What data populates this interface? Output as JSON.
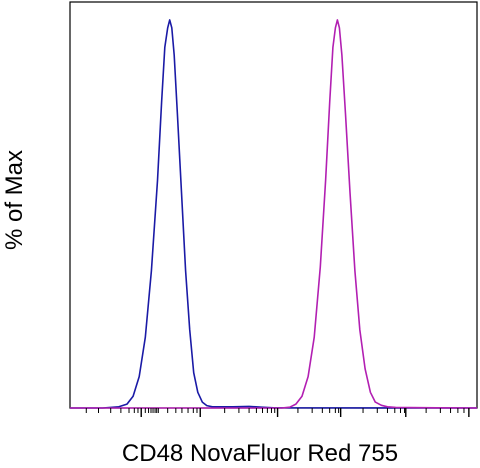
{
  "chart_data": {
    "type": "line",
    "title": "",
    "xlabel": "CD48 NovaFluor Red 755",
    "ylabel": "% of Max",
    "xlim": [
      0,
      100
    ],
    "ylim": [
      0,
      100
    ],
    "x_scale": "biexponential",
    "grid": false,
    "legend": "none",
    "series": [
      {
        "color": "#1a1aa6",
        "points": [
          [
            0,
            0
          ],
          [
            8,
            0
          ],
          [
            12,
            0.3
          ],
          [
            14,
            1
          ],
          [
            15.5,
            3
          ],
          [
            17,
            8
          ],
          [
            18.5,
            18
          ],
          [
            20,
            35
          ],
          [
            21.5,
            58
          ],
          [
            22.5,
            78
          ],
          [
            23.3,
            92
          ],
          [
            24,
            97
          ],
          [
            24.5,
            99
          ],
          [
            25,
            97
          ],
          [
            25.6,
            90
          ],
          [
            26.4,
            75
          ],
          [
            27.4,
            55
          ],
          [
            28.4,
            35
          ],
          [
            29.4,
            20
          ],
          [
            30.4,
            9
          ],
          [
            31.4,
            4
          ],
          [
            32.5,
            1.5
          ],
          [
            33.6,
            0.6
          ],
          [
            35,
            0.3
          ],
          [
            40,
            0.3
          ],
          [
            44,
            0.4
          ],
          [
            47,
            0.2
          ],
          [
            50,
            0.05
          ],
          [
            100,
            0
          ]
        ]
      },
      {
        "color": "#b21fb2",
        "points": [
          [
            0,
            0
          ],
          [
            52,
            0
          ],
          [
            54,
            0.2
          ],
          [
            55.5,
            1
          ],
          [
            57,
            3
          ],
          [
            58.5,
            8
          ],
          [
            60,
            18
          ],
          [
            61.5,
            36
          ],
          [
            62.8,
            58
          ],
          [
            63.8,
            78
          ],
          [
            64.6,
            92
          ],
          [
            65.2,
            97
          ],
          [
            65.7,
            99
          ],
          [
            66.2,
            97
          ],
          [
            66.8,
            90
          ],
          [
            67.7,
            75
          ],
          [
            68.8,
            55
          ],
          [
            70,
            35
          ],
          [
            71.2,
            20
          ],
          [
            72.5,
            10
          ],
          [
            73.8,
            4
          ],
          [
            75,
            1.5
          ],
          [
            76.5,
            0.7
          ],
          [
            78,
            0.3
          ],
          [
            80,
            0.15
          ],
          [
            90,
            0.05
          ],
          [
            100,
            0
          ]
        ]
      }
    ]
  }
}
